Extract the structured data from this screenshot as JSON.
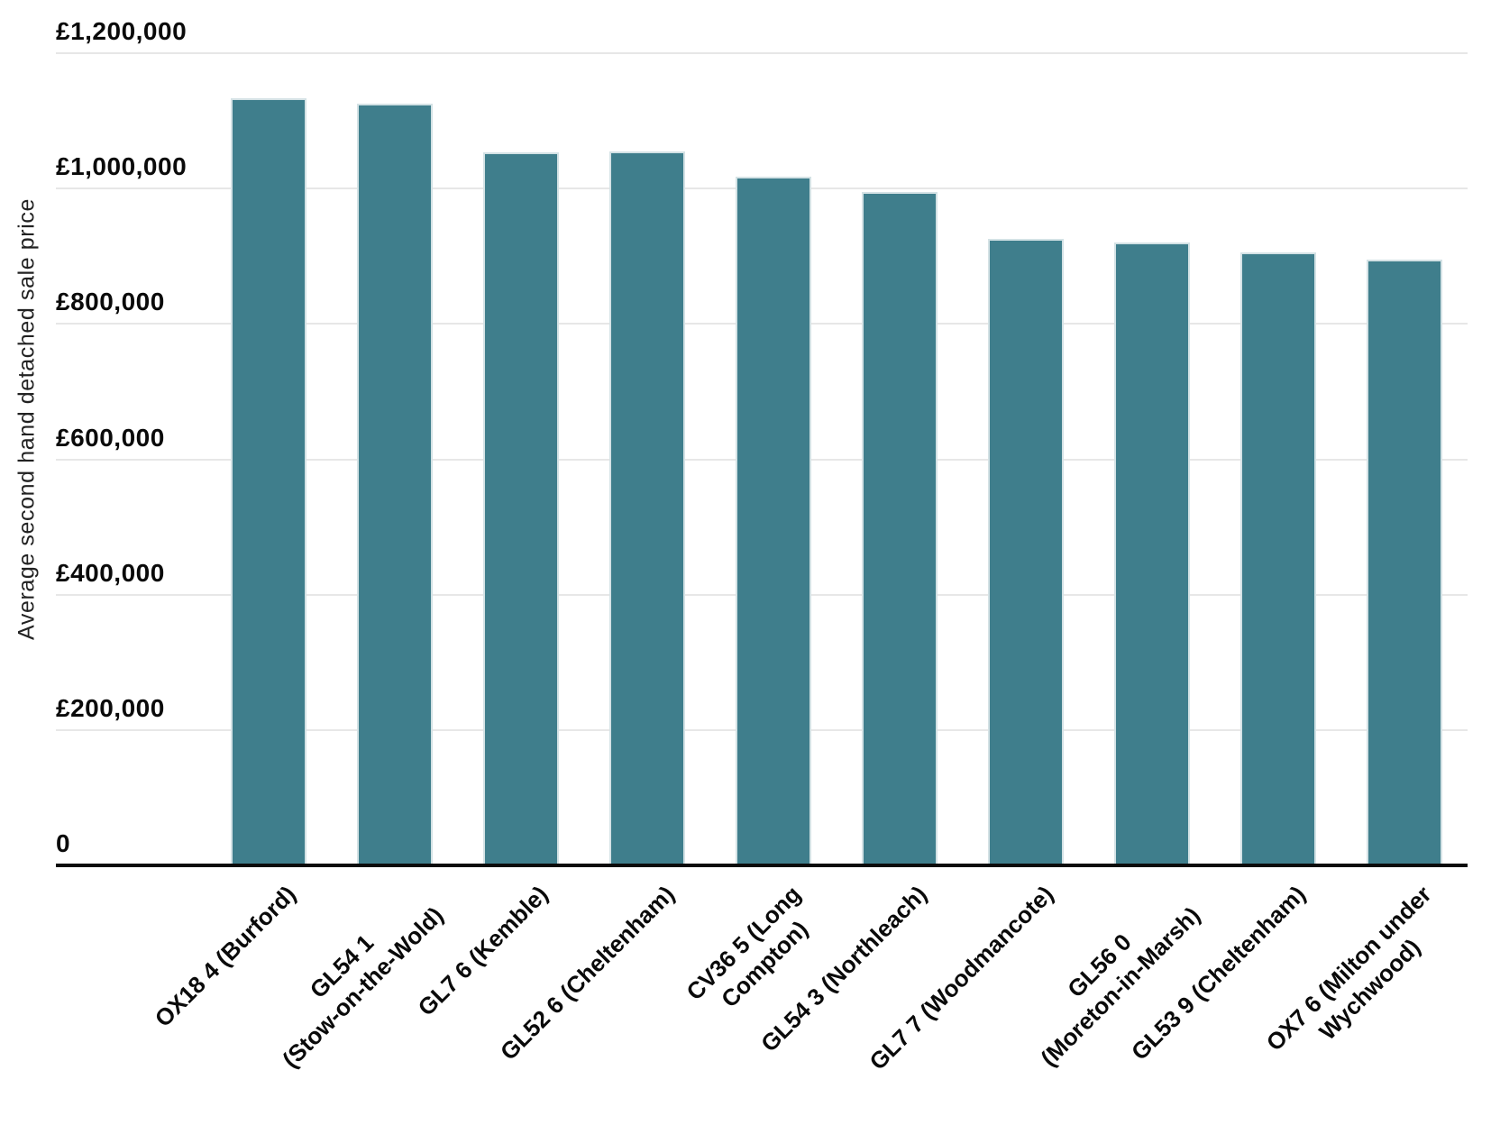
{
  "chart_data": {
    "type": "bar",
    "ylabel": "Average second hand detached sale price",
    "xlabel": "",
    "ylim": [
      0,
      1200000
    ],
    "grid": true,
    "legend": "none",
    "yticks": [
      {
        "value": 0,
        "label": "0"
      },
      {
        "value": 200000,
        "label": "£200,000"
      },
      {
        "value": 400000,
        "label": "£400,000"
      },
      {
        "value": 600000,
        "label": "£600,000"
      },
      {
        "value": 800000,
        "label": "£800,000"
      },
      {
        "value": 1000000,
        "label": "£1,000,000"
      },
      {
        "value": 1200000,
        "label": "£1,200,000"
      }
    ],
    "categories": [
      "OX18 4 (Burford)",
      "GL54 1 (Stow-on-the-Wold)",
      "GL7 6 (Kemble)",
      "GL52 6 (Cheltenham)",
      "CV36 5 (Long Compton)",
      "GL54 3 (Northleach)",
      "GL7 7 (Woodmancote)",
      "GL56 0 (Moreton-in-Marsh)",
      "GL53 9 (Cheltenham)",
      "OX7 6 (Milton under Wychwood)"
    ],
    "category_lines": [
      [
        "OX18 4 (Burford)"
      ],
      [
        "GL54 1",
        "(Stow-on-the-Wold)"
      ],
      [
        "GL7 6 (Kemble)"
      ],
      [
        "GL52 6 (Cheltenham)"
      ],
      [
        "CV36 5 (Long",
        "Compton)"
      ],
      [
        "GL54 3 (Northleach)"
      ],
      [
        "GL7 7 (Woodmancote)"
      ],
      [
        "GL56 0",
        "(Moreton-in-Marsh)"
      ],
      [
        "GL53 9 (Cheltenham)"
      ],
      [
        "OX7 6 (Milton under",
        "Wychwood)"
      ]
    ],
    "values": [
      1133000,
      1126000,
      1054000,
      1055000,
      1018000,
      995000,
      925000,
      920000,
      905000,
      895000
    ],
    "colors": {
      "bar": "#3f7e8c",
      "bar_border": "#d4e2e5",
      "grid": "#e7e7e7",
      "axis": "#0b0b0b",
      "text": "#0a0a0a"
    }
  }
}
